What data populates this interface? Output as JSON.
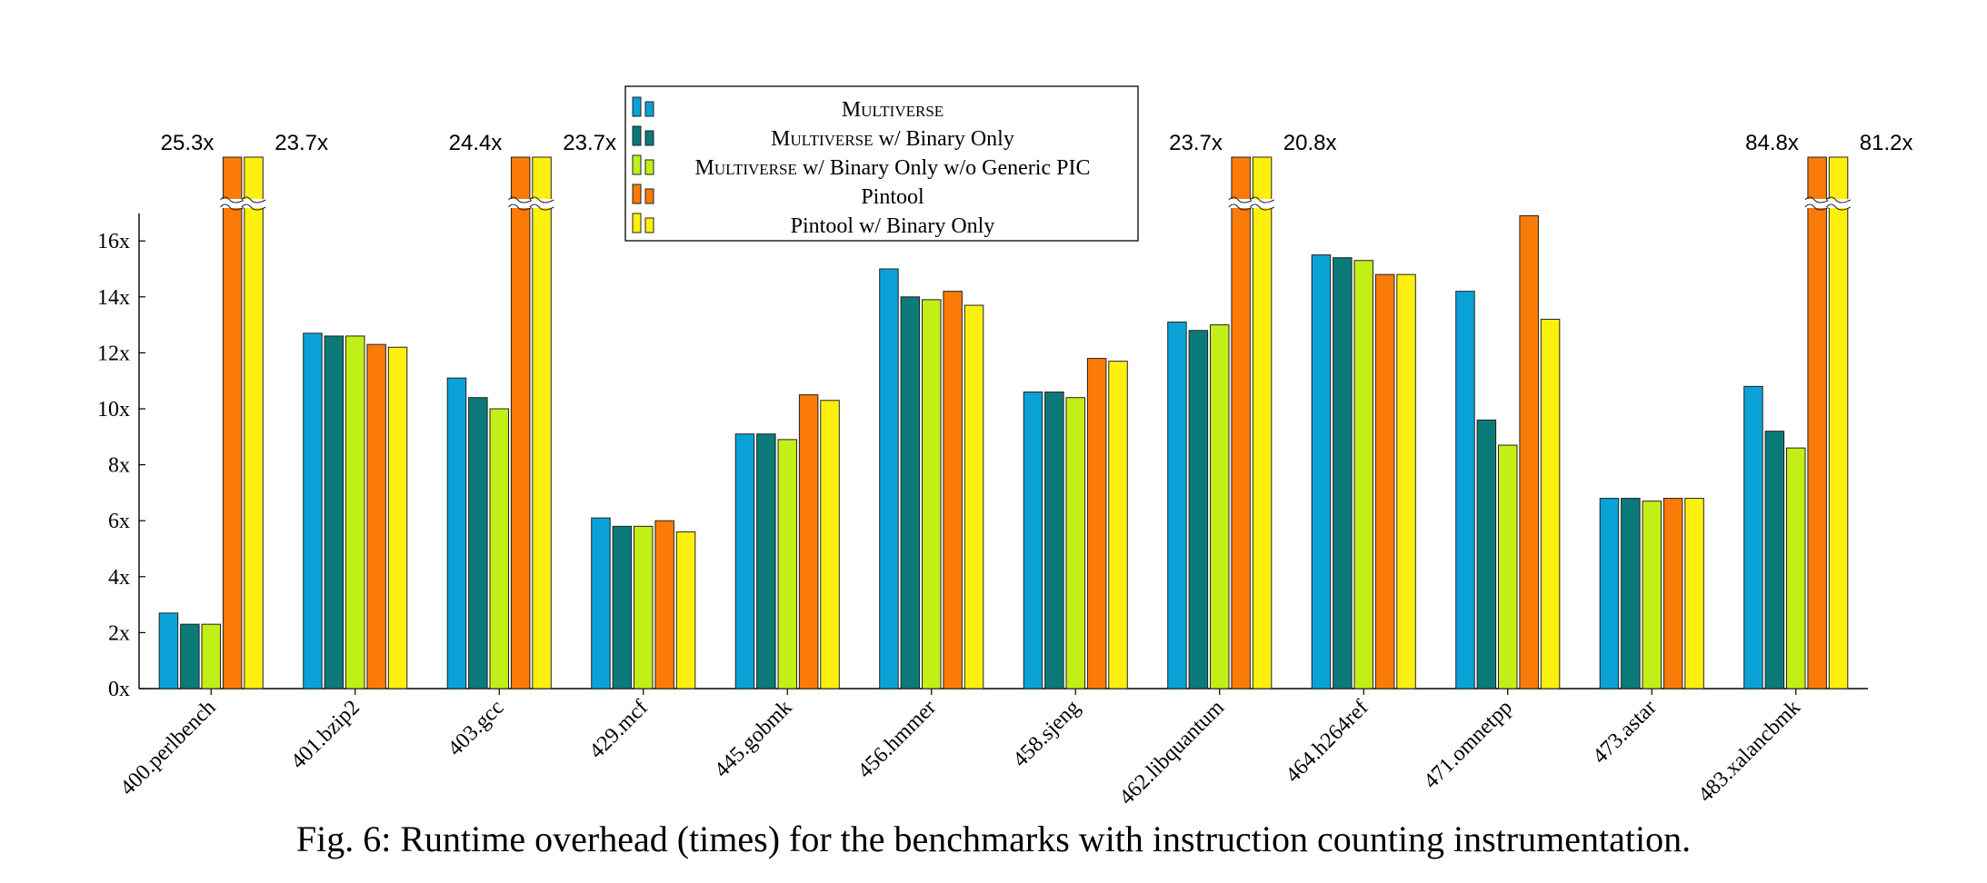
{
  "caption": "Fig. 6: Runtime overhead (times) for the benchmarks with instruction counting instrumentation.",
  "chart_data": {
    "type": "bar",
    "title": "",
    "xlabel": "",
    "ylabel": "",
    "ylim": [
      0,
      17
    ],
    "yticks": [
      0,
      2,
      4,
      6,
      8,
      10,
      12,
      14,
      16
    ],
    "ytick_labels": [
      "0x",
      "2x",
      "4x",
      "6x",
      "8x",
      "10x",
      "12x",
      "14x",
      "16x"
    ],
    "categories": [
      "400.perlbench",
      "401.bzip2",
      "403.gcc",
      "429.mcf",
      "445.gobmk",
      "456.hmmer",
      "458.sjeng",
      "462.libquantum",
      "464.h264ref",
      "471.omnetpp",
      "473.astar",
      "483.xalancbmk"
    ],
    "axis_break": true,
    "legend_position": "top-center",
    "series": [
      {
        "name": "Multiverse",
        "name_style": "smallcaps",
        "color": "#0aa2d6",
        "values": [
          2.7,
          12.7,
          11.1,
          6.1,
          9.1,
          15.0,
          10.6,
          13.1,
          15.5,
          14.2,
          6.8,
          10.8
        ]
      },
      {
        "name": "Multiverse",
        "name_suffix": " w/ Binary Only",
        "name_style": "smallcaps",
        "color": "#0b7a78",
        "values": [
          2.3,
          12.6,
          10.4,
          5.8,
          9.1,
          14.0,
          10.6,
          12.8,
          15.4,
          9.6,
          6.8,
          9.2
        ]
      },
      {
        "name": "Multiverse",
        "name_suffix": " w/ Binary Only w/o Generic PIC",
        "name_style": "smallcaps",
        "color": "#c2ef16",
        "values": [
          2.3,
          12.6,
          10.0,
          5.8,
          8.9,
          13.9,
          10.4,
          13.0,
          15.3,
          8.7,
          6.7,
          8.6
        ]
      },
      {
        "name": "Pintool",
        "color": "#fb7b09",
        "values": [
          25.3,
          12.3,
          24.4,
          6.0,
          10.5,
          14.2,
          11.8,
          23.7,
          14.8,
          16.9,
          6.8,
          84.8
        ]
      },
      {
        "name": "Pintool w/ Binary Only",
        "color": "#fef00e",
        "values": [
          23.7,
          12.2,
          23.7,
          5.6,
          10.3,
          13.7,
          11.7,
          20.8,
          14.8,
          13.2,
          6.8,
          81.2
        ]
      }
    ],
    "break_labels": [
      {
        "category": "400.perlbench",
        "series": 3,
        "text": "25.3x"
      },
      {
        "category": "400.perlbench",
        "series": 4,
        "text": "23.7x"
      },
      {
        "category": "403.gcc",
        "series": 3,
        "text": "24.4x"
      },
      {
        "category": "403.gcc",
        "series": 4,
        "text": "23.7x"
      },
      {
        "category": "462.libquantum",
        "series": 3,
        "text": "23.7x"
      },
      {
        "category": "462.libquantum",
        "series": 4,
        "text": "20.8x"
      },
      {
        "category": "483.xalancbmk",
        "series": 3,
        "text": "84.8x"
      },
      {
        "category": "483.xalancbmk",
        "series": 4,
        "text": "81.2x"
      }
    ]
  }
}
